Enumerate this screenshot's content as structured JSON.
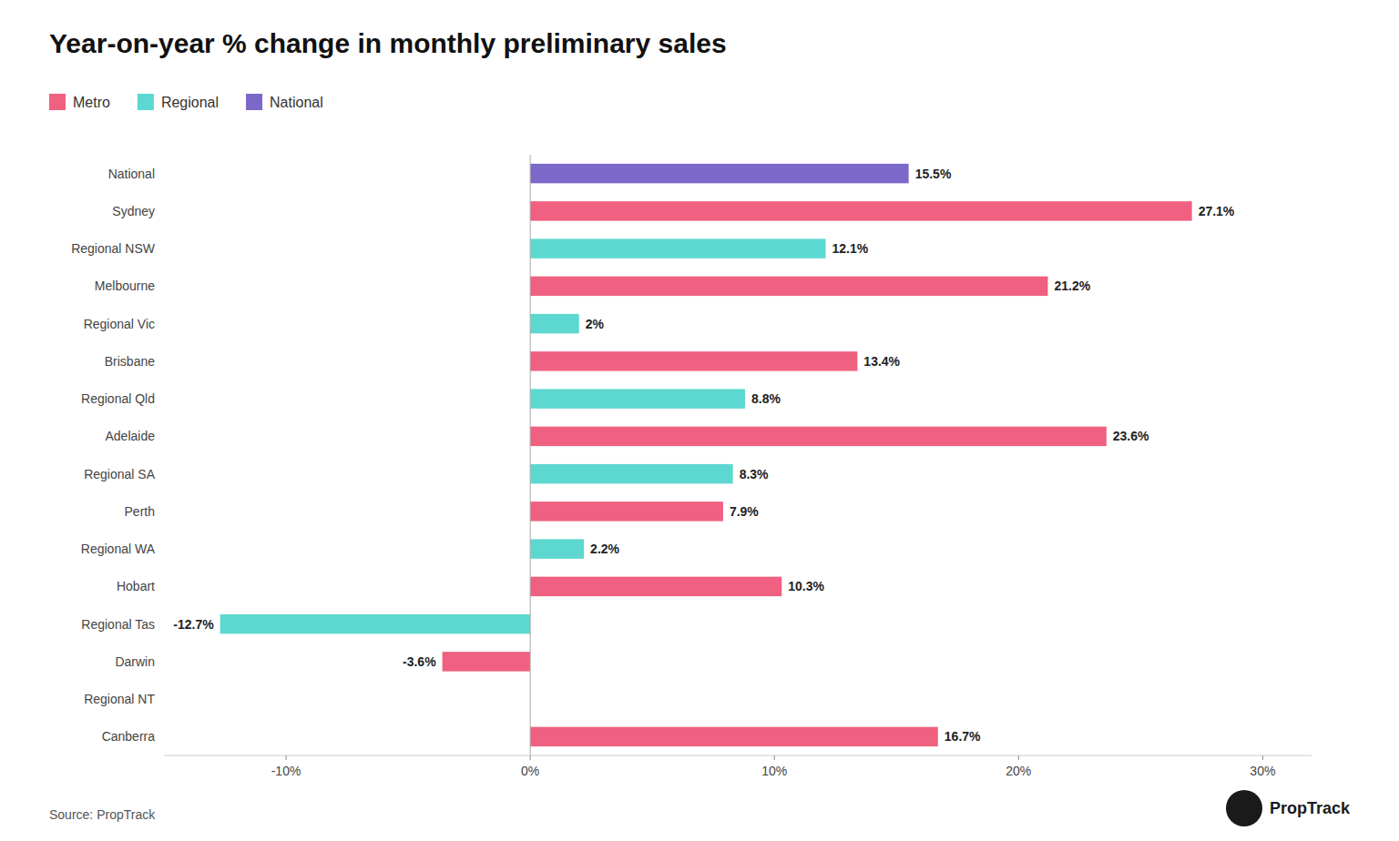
{
  "chart_data": {
    "type": "bar",
    "orientation": "horizontal",
    "stacked": true,
    "grid": false,
    "legend": "top-left",
    "title": "Year-on-year % change in monthly preliminary sales",
    "categories": [
      "Canberra",
      "Regional NT",
      "Darwin",
      "Regional Tas",
      "Hobart",
      "Regional WA",
      "Perth",
      "Regional SA",
      "Adelaide",
      "Regional Qld",
      "Brisbane",
      "Regional Vic",
      "Melbourne",
      "Regional NSW",
      "Sydney",
      "National"
    ],
    "series": [
      {
        "name": "Metro",
        "color": "#F06080",
        "values": [
          16.7,
          0.0,
          -3.6,
          null,
          10.3,
          null,
          7.9,
          null,
          23.6,
          null,
          13.4,
          null,
          21.2,
          null,
          27.1,
          null
        ],
        "value_labels": [
          "16.7%",
          null,
          "-3.6%",
          null,
          "10.3%",
          null,
          "7.9%",
          null,
          "23.6%",
          null,
          "13.4%",
          null,
          "21.2%",
          null,
          "27.1%",
          null
        ]
      },
      {
        "name": "Regional",
        "color": "#5DD8D0",
        "values": [
          null,
          null,
          null,
          -12.7,
          null,
          2.2,
          null,
          8.3,
          null,
          8.8,
          null,
          2.0,
          null,
          12.1,
          null,
          null
        ],
        "value_labels": [
          null,
          null,
          null,
          "-12.7%",
          null,
          "2.2%",
          null,
          "8.3%",
          null,
          "8.8%",
          null,
          "2%",
          null,
          "12.1%",
          null,
          null
        ]
      },
      {
        "name": "National",
        "color": "#7B68C8",
        "values": [
          null,
          null,
          null,
          null,
          null,
          null,
          null,
          null,
          null,
          null,
          null,
          null,
          null,
          null,
          null,
          15.5
        ],
        "value_labels": [
          null,
          null,
          null,
          null,
          null,
          null,
          null,
          null,
          null,
          null,
          null,
          null,
          null,
          null,
          null,
          "15.5%"
        ]
      }
    ],
    "xlim": [
      -15,
      32
    ],
    "xticks": [
      {
        "value": -10,
        "label": "-10%"
      },
      {
        "value": 0,
        "label": "0%"
      },
      {
        "value": 10,
        "label": "10%"
      },
      {
        "value": 20,
        "label": "20%"
      },
      {
        "value": 30,
        "label": "30%"
      }
    ],
    "annotations": [
      "Source: PropTrack",
      "PropTrack"
    ]
  }
}
